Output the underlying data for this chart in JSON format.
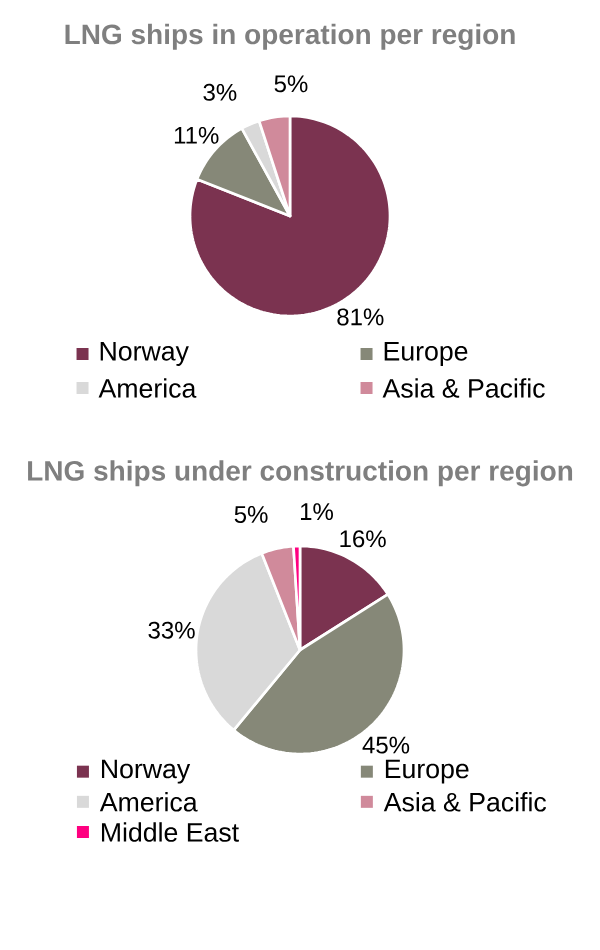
{
  "chart_data": [
    {
      "type": "pie",
      "title": "LNG ships in operation per region",
      "categories": [
        "Norway",
        "Europe",
        "America",
        "Asia & Pacific"
      ],
      "values": [
        81,
        11,
        3,
        5
      ],
      "colors": [
        "#7b3350",
        "#868878",
        "#d9d9d9",
        "#d08a9b"
      ],
      "value_labels": [
        "81%",
        "11%",
        "3%",
        "5%"
      ],
      "legend": "bottom"
    },
    {
      "type": "pie",
      "title": "LNG ships under construction per region",
      "categories": [
        "Norway",
        "Europe",
        "America",
        "Asia & Pacific",
        "Middle East"
      ],
      "values": [
        16,
        45,
        33,
        5,
        1
      ],
      "colors": [
        "#7b3350",
        "#868878",
        "#d9d9d9",
        "#d08a9b",
        "#ff0080"
      ],
      "value_labels": [
        "16%",
        "45%",
        "33%",
        "5%",
        "1%"
      ],
      "legend": "bottom"
    }
  ]
}
